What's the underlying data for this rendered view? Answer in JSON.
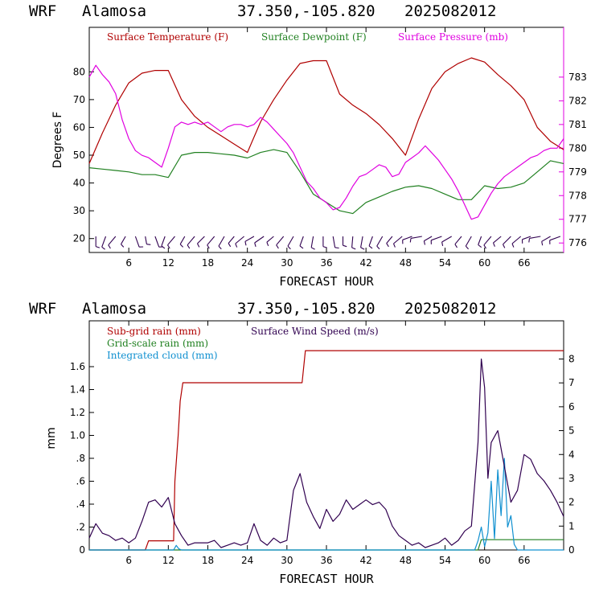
{
  "colors": {
    "temperature": "#b00000",
    "dewpoint": "#208020",
    "pressure": "#e000e0",
    "subgrid": "#b00000",
    "gridscale": "#208020",
    "cloud": "#1090d0",
    "wind": "#300050",
    "barb": "#300050"
  },
  "chart_data": [
    {
      "type": "line",
      "header": {
        "model": "WRF",
        "site": "Alamosa",
        "coords": "37.350,-105.820",
        "run": "2025082012"
      },
      "xlabel": "FORECAST HOUR",
      "ylabel": "Degrees F",
      "xlim": [
        0,
        72
      ],
      "ylim": [
        15,
        96
      ],
      "y2lim": [
        775.6,
        785.1
      ],
      "xticks": [
        6,
        12,
        18,
        24,
        30,
        36,
        42,
        48,
        54,
        60,
        66
      ],
      "xtick_labels": [
        "6",
        "12",
        "18",
        "24",
        "30",
        "36",
        "42",
        "48",
        "54",
        "60",
        "66"
      ],
      "yticks": [
        20,
        30,
        40,
        50,
        60,
        70,
        80
      ],
      "ytick_labels": [
        "20",
        "30",
        "40",
        "50",
        "60",
        "70",
        "80"
      ],
      "y2ticks": [
        776,
        777,
        778,
        779,
        780,
        781,
        782,
        783
      ],
      "y2tick_labels": [
        "776",
        "777",
        "778",
        "779",
        "780",
        "781",
        "782",
        "783"
      ],
      "legend": [
        "Surface Temperature (F)",
        "Surface Dewpoint (F)",
        "Surface Pressure (mb)"
      ],
      "series": [
        {
          "name": "Surface Temperature (F)",
          "axis": "left",
          "x": [
            0,
            2,
            4,
            6,
            8,
            10,
            12,
            14,
            16,
            18,
            20,
            22,
            24,
            26,
            28,
            30,
            32,
            34,
            36,
            38,
            40,
            42,
            44,
            46,
            48,
            50,
            52,
            54,
            56,
            58,
            60,
            62,
            64,
            66,
            68,
            70,
            72
          ],
          "y": [
            47,
            58,
            68,
            76,
            79.5,
            80.5,
            80.5,
            70,
            64,
            60,
            57,
            54,
            51,
            62,
            70,
            77,
            83,
            84,
            84,
            72,
            68,
            65,
            61,
            56,
            50,
            63,
            74,
            80,
            83,
            85,
            83.5,
            79,
            75,
            70,
            60,
            55,
            52
          ]
        },
        {
          "name": "Surface Dewpoint (F)",
          "axis": "left",
          "x": [
            0,
            2,
            4,
            6,
            8,
            10,
            12,
            14,
            16,
            18,
            20,
            22,
            24,
            26,
            28,
            30,
            32,
            34,
            36,
            38,
            40,
            42,
            44,
            46,
            48,
            50,
            52,
            54,
            56,
            58,
            60,
            62,
            64,
            66,
            68,
            70,
            72
          ],
          "y": [
            45.5,
            45,
            44.5,
            44,
            43,
            43,
            42,
            50,
            51,
            51,
            50.5,
            50,
            49,
            51,
            52,
            51,
            44,
            36,
            33,
            30,
            29,
            33,
            35,
            37,
            38.5,
            39,
            38,
            36,
            34,
            34,
            39,
            38,
            38.5,
            40,
            44,
            48,
            47
          ]
        },
        {
          "name": "Surface Pressure (mb)",
          "axis": "right",
          "x": [
            0,
            1,
            2,
            3,
            4,
            5,
            6,
            7,
            8,
            9,
            10,
            11,
            12,
            13,
            14,
            15,
            16,
            17,
            18,
            19,
            20,
            21,
            22,
            23,
            24,
            25,
            26,
            27,
            28,
            29,
            30,
            31,
            32,
            33,
            34,
            35,
            36,
            37,
            38,
            39,
            40,
            41,
            42,
            43,
            44,
            45,
            46,
            47,
            48,
            49,
            50,
            51,
            52,
            53,
            54,
            55,
            56,
            57,
            58,
            59,
            60,
            61,
            62,
            63,
            64,
            65,
            66,
            67,
            68,
            69,
            70,
            71,
            72
          ],
          "y": [
            783,
            783.5,
            783.1,
            782.8,
            782.3,
            781.2,
            780.4,
            779.9,
            779.7,
            779.6,
            779.4,
            779.2,
            780,
            780.9,
            781.1,
            781.0,
            781.1,
            781.0,
            781.1,
            780.9,
            780.7,
            780.9,
            781.0,
            781.0,
            780.9,
            781.0,
            781.3,
            781.1,
            780.8,
            780.5,
            780.2,
            779.8,
            779.2,
            778.6,
            778.3,
            777.9,
            777.7,
            777.4,
            777.5,
            777.9,
            778.4,
            778.8,
            778.9,
            779.1,
            779.3,
            779.2,
            778.8,
            778.9,
            779.4,
            779.6,
            779.8,
            780.1,
            779.8,
            779.5,
            779.1,
            778.7,
            778.2,
            777.6,
            777.0,
            777.1,
            777.6,
            778.1,
            778.5,
            778.8,
            779.0,
            779.2,
            779.4,
            779.6,
            779.7,
            779.9,
            780.0,
            780.0,
            780.4
          ]
        }
      ],
      "wind_barbs": {
        "x": [
          1,
          2.5,
          4,
          5.5,
          7,
          8.5,
          10,
          11.5,
          13,
          14.5,
          16,
          17.5,
          19,
          20.5,
          22,
          23.5,
          25,
          26.5,
          28,
          29.5,
          31,
          32.5,
          34,
          35.5,
          37,
          38.5,
          40,
          41.5,
          43,
          44.5,
          46,
          47.5,
          49,
          50.5,
          52,
          53.5,
          55,
          56.5,
          58,
          59.5,
          61,
          62.5,
          64,
          65.5,
          67,
          68.5,
          70,
          71.5
        ],
        "direction_deg": [
          270,
          250,
          230,
          240,
          290,
          280,
          290,
          250,
          230,
          240,
          230,
          225,
          230,
          240,
          230,
          220,
          210,
          215,
          220,
          230,
          240,
          250,
          260,
          270,
          280,
          270,
          265,
          260,
          250,
          240,
          230,
          220,
          200,
          190,
          210,
          200,
          210,
          230,
          240,
          250,
          230,
          220,
          225,
          220,
          200,
          190,
          210,
          200
        ],
        "length": [
          0.9,
          1,
          1,
          0.8,
          1,
          0.7,
          1,
          0.9,
          1,
          0.8,
          1,
          0.9,
          1,
          1,
          0.8,
          1,
          0.9,
          1,
          0.8,
          1,
          1,
          0.9,
          1,
          0.9,
          1,
          0.8,
          1,
          1,
          0.9,
          1,
          0.8,
          1,
          0.9,
          1,
          0.8,
          1,
          1,
          0.9,
          1,
          0.8,
          1,
          0.9,
          1,
          1,
          0.8,
          1,
          0.9,
          1
        ]
      }
    },
    {
      "type": "line",
      "header": {
        "model": "WRF",
        "site": "Alamosa",
        "coords": "37.350,-105.820",
        "run": "2025082012"
      },
      "xlabel": "FORECAST HOUR",
      "ylabel": "mm",
      "xlim": [
        0,
        72
      ],
      "ylim": [
        0,
        2.0
      ],
      "y2lim": [
        0,
        9.6
      ],
      "xticks": [
        6,
        12,
        18,
        24,
        30,
        36,
        42,
        48,
        54,
        60,
        66
      ],
      "xtick_labels": [
        "6",
        "12",
        "18",
        "24",
        "30",
        "36",
        "42",
        "48",
        "54",
        "60",
        "66"
      ],
      "yticks": [
        0,
        0.2,
        0.4,
        0.6,
        0.8,
        1.0,
        1.2,
        1.4,
        1.6
      ],
      "ytick_labels": [
        "0",
        ".2",
        ".4",
        ".6",
        ".8",
        "1.0",
        "1.2",
        "1.4",
        "1.6"
      ],
      "y2ticks": [
        0,
        1,
        2,
        3,
        4,
        5,
        6,
        7,
        8
      ],
      "y2tick_labels": [
        "0",
        "1",
        "2",
        "3",
        "4",
        "5",
        "6",
        "7",
        "8"
      ],
      "legend": [
        "Sub-grid rain (mm)",
        "Grid-scale rain (mm)",
        "Integrated cloud (mm)",
        "Surface Wind Speed (m/s)"
      ],
      "series": [
        {
          "name": "Sub-grid rain (mm)",
          "axis": "left",
          "x": [
            0,
            8.5,
            9,
            12.8,
            13,
            13.5,
            13.8,
            14.2,
            32.3,
            32.8,
            72
          ],
          "y": [
            0,
            0,
            0.08,
            0.08,
            0.6,
            1.0,
            1.3,
            1.46,
            1.46,
            1.74,
            1.74
          ]
        },
        {
          "name": "Grid-scale rain (mm)",
          "axis": "left",
          "x": [
            0,
            59,
            59.5,
            72
          ],
          "y": [
            0,
            0,
            0.09,
            0.09
          ]
        },
        {
          "name": "Integrated cloud (mm)",
          "axis": "left",
          "x": [
            0,
            12.8,
            13.2,
            13.6,
            14,
            58.5,
            59,
            59.5,
            60,
            60.5,
            61,
            61.5,
            62,
            62.5,
            63,
            63.5,
            64,
            64.5,
            65,
            72
          ],
          "y": [
            0,
            0,
            0.04,
            0.01,
            0,
            0,
            0.08,
            0.2,
            0.03,
            0.15,
            0.6,
            0.1,
            0.7,
            0.3,
            0.8,
            0.2,
            0.3,
            0.05,
            0,
            0
          ]
        },
        {
          "name": "Surface Wind Speed (m/s)",
          "axis": "right",
          "x": [
            0,
            1,
            2,
            3,
            4,
            5,
            6,
            7,
            8,
            9,
            10,
            11,
            12,
            13,
            14,
            15,
            16,
            17,
            18,
            19,
            20,
            21,
            22,
            23,
            24,
            25,
            26,
            27,
            28,
            29,
            30,
            31,
            32,
            33,
            34,
            35,
            36,
            37,
            38,
            39,
            40,
            41,
            42,
            43,
            44,
            45,
            46,
            47,
            48,
            49,
            50,
            51,
            52,
            53,
            54,
            55,
            56,
            57,
            58,
            59,
            59.5,
            60,
            60.5,
            61,
            62,
            63,
            64,
            65,
            66,
            67,
            68,
            69,
            70,
            71,
            72
          ],
          "y": [
            0.5,
            1.1,
            0.7,
            0.6,
            0.4,
            0.5,
            0.3,
            0.5,
            1.2,
            2.0,
            2.1,
            1.8,
            2.2,
            1.1,
            0.6,
            0.2,
            0.3,
            0.3,
            0.3,
            0.4,
            0.1,
            0.2,
            0.3,
            0.2,
            0.3,
            1.1,
            0.4,
            0.2,
            0.5,
            0.3,
            0.4,
            2.5,
            3.2,
            2.0,
            1.4,
            0.9,
            1.7,
            1.2,
            1.5,
            2.1,
            1.7,
            1.9,
            2.1,
            1.9,
            2.0,
            1.7,
            1.0,
            0.6,
            0.4,
            0.2,
            0.3,
            0.1,
            0.2,
            0.3,
            0.5,
            0.2,
            0.4,
            0.8,
            1.0,
            4.5,
            8.0,
            6.8,
            3.0,
            4.5,
            5.0,
            3.5,
            2.0,
            2.5,
            4.0,
            3.8,
            3.2,
            2.9,
            2.5,
            2.0,
            1.4
          ]
        }
      ]
    }
  ]
}
